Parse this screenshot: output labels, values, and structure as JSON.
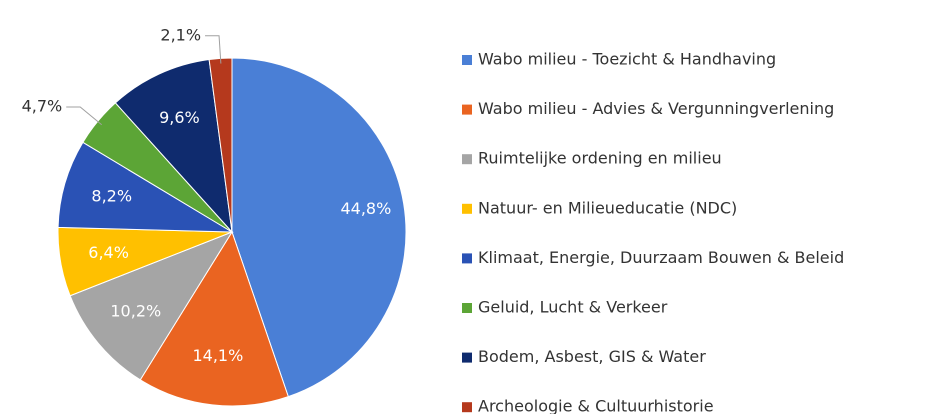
{
  "chart_data": {
    "type": "pie",
    "categories": [
      "Wabo milieu - Toezicht & Handhaving",
      "Wabo milieu - Advies & Vergunningverlening",
      "Ruimtelijke ordening en milieu",
      "Natuur- en Milieueducatie (NDC)",
      "Klimaat, Energie, Duurzaam Bouwen & Beleid",
      "Geluid, Lucht & Verkeer",
      "Bodem, Asbest, GIS & Water",
      "Archeologie & Cultuurhistorie"
    ],
    "values": [
      44.8,
      14.1,
      10.2,
      6.4,
      8.2,
      4.7,
      9.6,
      2.1
    ],
    "value_labels": [
      "44,8%",
      "14,1%",
      "10,2%",
      "6,4%",
      "8,2%",
      "4,7%",
      "9,6%",
      "2,1%"
    ],
    "colors": [
      "#4a7fd6",
      "#ea6421",
      "#a5a5a5",
      "#ffc000",
      "#2a52b5",
      "#5ca536",
      "#0f2b6e",
      "#b5391d"
    ],
    "legend": "right"
  }
}
